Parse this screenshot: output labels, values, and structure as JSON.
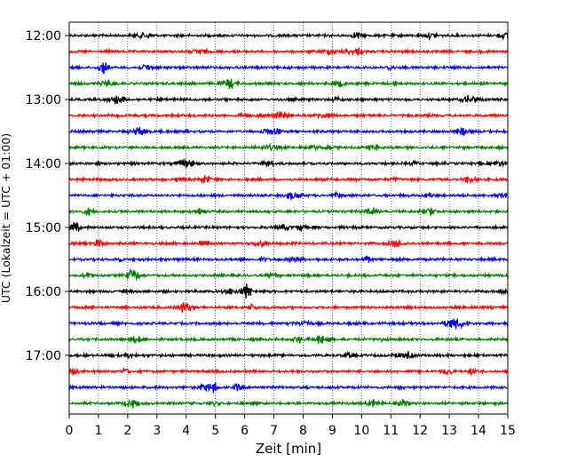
{
  "chart_data": {
    "type": "line",
    "title": "",
    "xlabel": "Zeit  [min]",
    "ylabel": "UTC (Lokalzeit = UTC + 01:00)",
    "xlim": [
      0,
      15
    ],
    "x_ticks": [
      "0",
      "1",
      "2",
      "3",
      "4",
      "5",
      "6",
      "7",
      "8",
      "9",
      "10",
      "11",
      "12",
      "13",
      "14",
      "15"
    ],
    "y_ticks": [
      "12:00",
      "13:00",
      "14:00",
      "15:00",
      "16:00",
      "17:00"
    ],
    "grid": "vertical dotted lines at each minute",
    "traces_per_hour": 4,
    "trace_start_times": [
      "12:00",
      "12:15",
      "12:30",
      "12:45",
      "13:00",
      "13:15",
      "13:30",
      "13:45",
      "14:00",
      "14:15",
      "14:30",
      "14:45",
      "15:00",
      "15:15",
      "15:30",
      "15:45",
      "16:00",
      "16:15",
      "16:30",
      "16:45",
      "17:00",
      "17:15",
      "17:30",
      "17:45"
    ],
    "trace_colors": [
      "#000000",
      "#ff0000",
      "#0000ff",
      "#008000"
    ]
  }
}
